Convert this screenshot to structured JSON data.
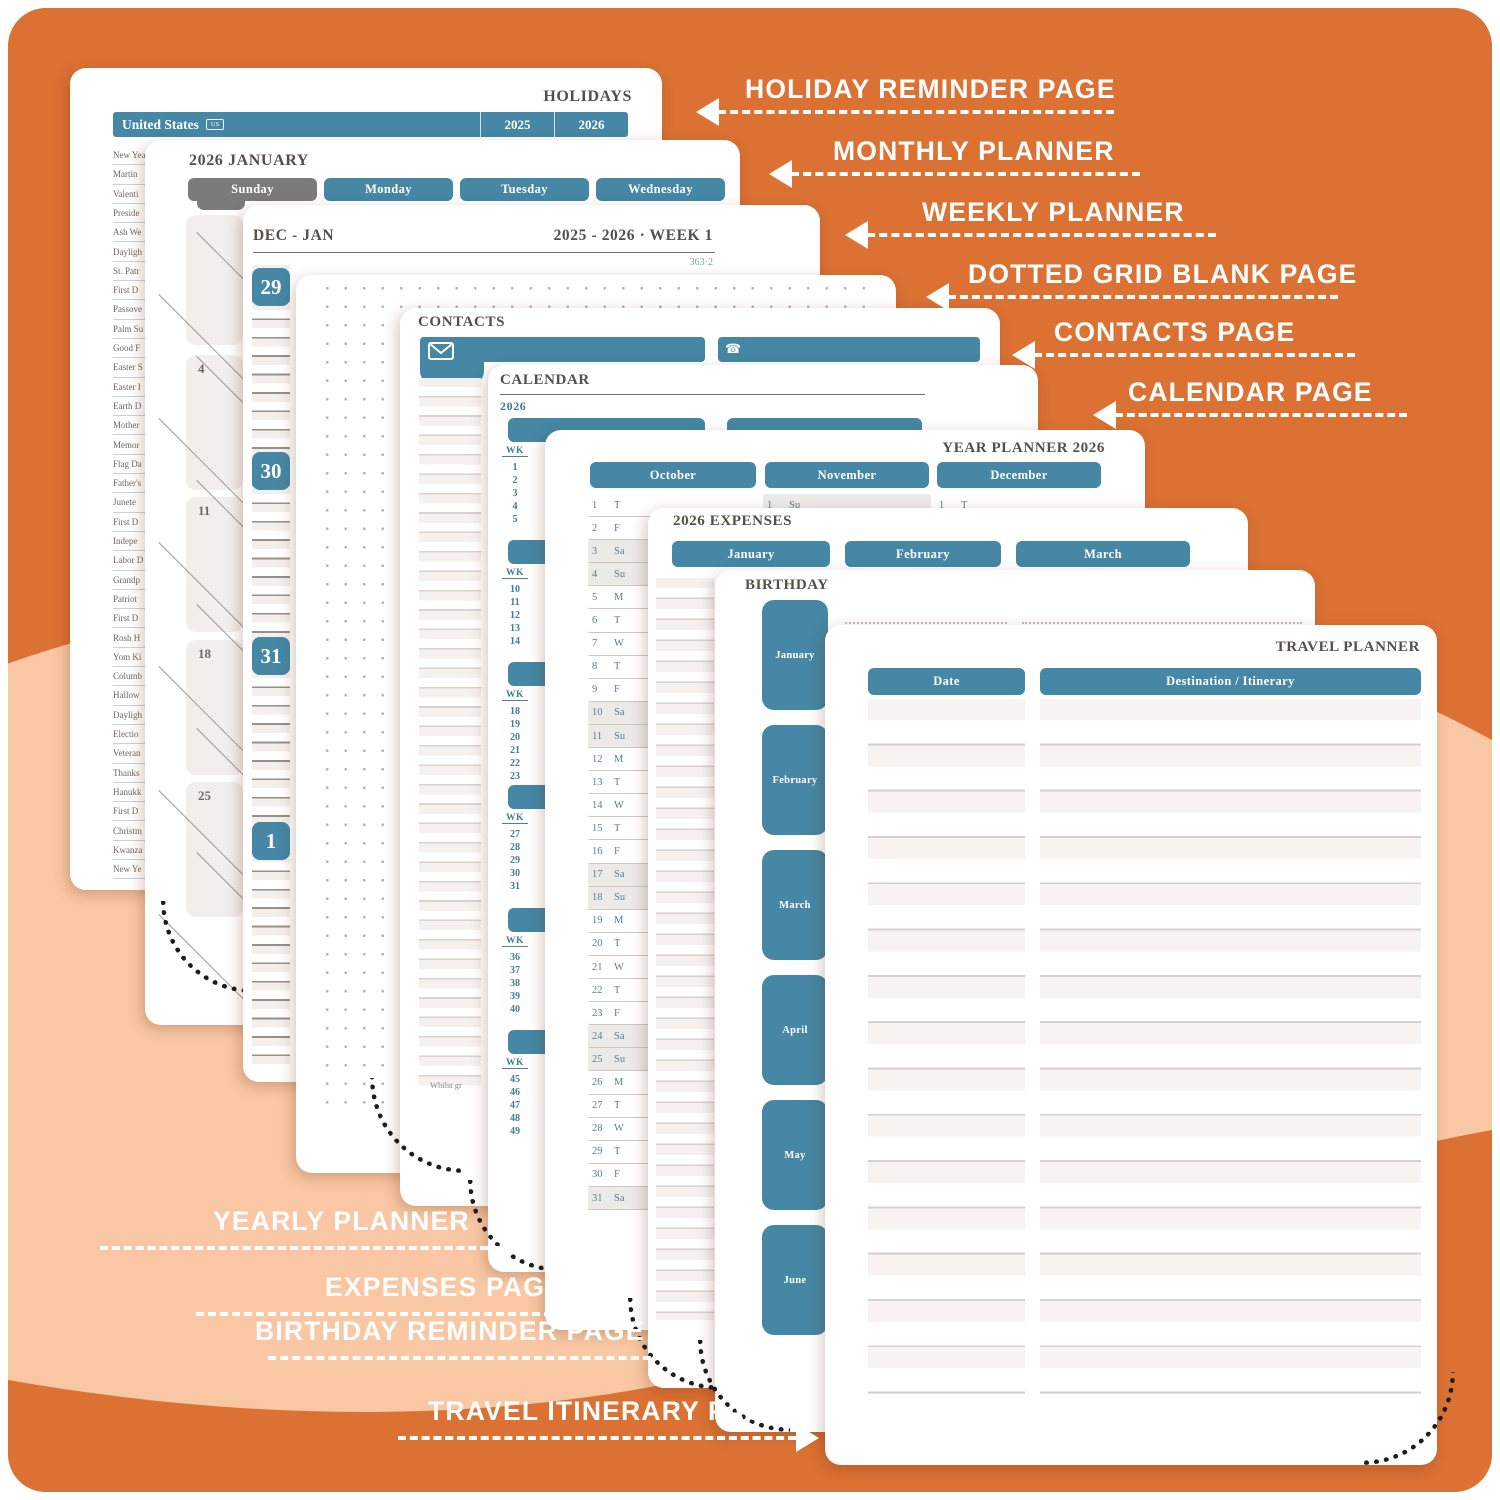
{
  "poster": {
    "bg_orange": "#dc7134",
    "bg_peach": "#f9c7a3",
    "teal": "#4587a4",
    "labels_right": [
      "HOLIDAY REMINDER PAGE",
      "MONTHLY PLANNER",
      "WEEKLY PLANNER",
      "DOTTED GRID BLANK PAGE",
      "CONTACTS PAGE",
      "CALENDAR PAGE"
    ],
    "labels_left": [
      "YEARLY PLANNER",
      "EXPENSES PAGE",
      "BIRTHDAY REMINDER PAGE",
      "TRAVEL ITINERARY PAGE"
    ]
  },
  "pages": {
    "holidays": {
      "title": "HOLIDAYS",
      "country": "United States",
      "country_badge": "US",
      "years": [
        "2025",
        "2026"
      ],
      "items": [
        "New Year's",
        "Martin",
        "Valenti",
        "Preside",
        "Ash We",
        "Dayligh",
        "St. Patr",
        "First D",
        "Passove",
        "Palm Su",
        "Good F",
        "Easter S",
        "Easter I",
        "Earth D",
        "Mother",
        "Memor",
        "Flag Da",
        "Father's",
        "Junete",
        "First D",
        "Indepe",
        "Labor D",
        "Grandp",
        "Patriot",
        "First D",
        "Rosh H",
        "Yom Ki",
        "Columb",
        "Hallow",
        "Dayligh",
        "Electio",
        "Veteran",
        "Thanks",
        "Hanukk",
        "First D",
        "Christm",
        "Kwanza",
        "New Ye"
      ]
    },
    "monthly": {
      "title": "2026 JANUARY",
      "day_headers": [
        "Sunday",
        "Monday",
        "Tuesday",
        "Wednesday"
      ],
      "week_dates": [
        "",
        "4",
        "11",
        "18",
        "25"
      ]
    },
    "weekly": {
      "title_left": "DEC - JAN",
      "title_right": "2025 - 2026 · WEEK 1",
      "day_note": "363·2",
      "day_numbers": [
        "29",
        "30",
        "31",
        "1"
      ]
    },
    "contacts": {
      "title": "CONTACTS",
      "footnote": "Whilst gr"
    },
    "calendar": {
      "title": "CALENDAR",
      "year": "2026",
      "wk_label": "WK",
      "week_groups": [
        [
          "1",
          "2",
          "3",
          "4",
          "5"
        ],
        [
          "10",
          "11",
          "12",
          "13",
          "14"
        ],
        [
          "18",
          "19",
          "20",
          "21",
          "22",
          "23"
        ],
        [
          "27",
          "28",
          "29",
          "30",
          "31"
        ],
        [
          "36",
          "37",
          "38",
          "39",
          "40"
        ],
        [
          "45",
          "46",
          "47",
          "48",
          "49"
        ]
      ]
    },
    "year_planner": {
      "title": "YEAR PLANNER 2026",
      "months": [
        "October",
        "November",
        "December"
      ],
      "october_days": [
        [
          "1",
          "T"
        ],
        [
          "2",
          "F"
        ],
        [
          "3",
          "Sa"
        ],
        [
          "4",
          "Su"
        ],
        [
          "5",
          "M"
        ],
        [
          "6",
          "T"
        ],
        [
          "7",
          "W"
        ],
        [
          "8",
          "T"
        ],
        [
          "9",
          "F"
        ],
        [
          "10",
          "Sa"
        ],
        [
          "11",
          "Su"
        ],
        [
          "12",
          "M"
        ],
        [
          "13",
          "T"
        ],
        [
          "14",
          "W"
        ],
        [
          "15",
          "T"
        ],
        [
          "16",
          "F"
        ],
        [
          "17",
          "Sa"
        ],
        [
          "18",
          "Su"
        ],
        [
          "19",
          "M"
        ],
        [
          "20",
          "T"
        ],
        [
          "21",
          "W"
        ],
        [
          "22",
          "T"
        ],
        [
          "23",
          "F"
        ],
        [
          "24",
          "Sa"
        ],
        [
          "25",
          "Su"
        ],
        [
          "26",
          "M"
        ],
        [
          "27",
          "T"
        ],
        [
          "28",
          "W"
        ],
        [
          "29",
          "T"
        ],
        [
          "30",
          "F"
        ],
        [
          "31",
          "Sa"
        ]
      ],
      "november_first": [
        "1",
        "Su"
      ],
      "december_first": [
        "1",
        "T"
      ]
    },
    "expenses": {
      "title": "2026 EXPENSES",
      "months": [
        "January",
        "February",
        "March"
      ]
    },
    "birthday": {
      "title": "BIRTHDAY",
      "months": [
        "January",
        "February",
        "March",
        "April",
        "May",
        "June"
      ]
    },
    "travel": {
      "title": "TRAVEL PLANNER",
      "columns": [
        "Date",
        "Destination / Itinerary"
      ],
      "row_count": 15
    }
  }
}
